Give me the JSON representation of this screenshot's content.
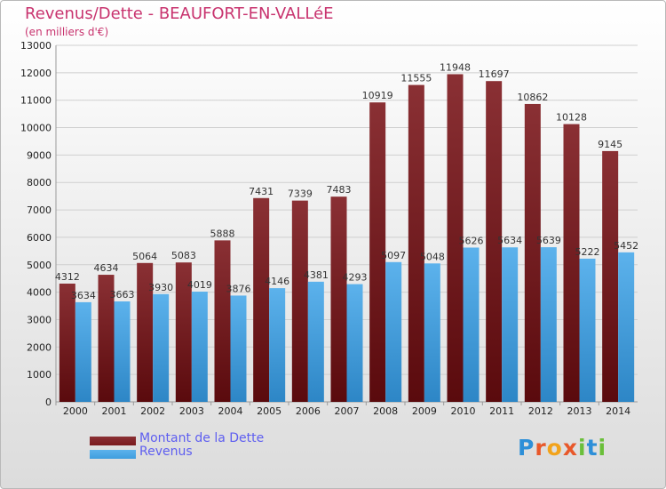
{
  "colors": {
    "title": "#c8336e",
    "legend_text": "#5e5ef0",
    "debt": "#7a1a1d",
    "revenue": "#3f9ede"
  },
  "chart_data": {
    "type": "bar",
    "title": "Revenus/Dette - BEAUFORT-EN-VALLéE",
    "subtitle": "(en milliers d'€)",
    "categories": [
      "2000",
      "2001",
      "2002",
      "2003",
      "2004",
      "2005",
      "2006",
      "2007",
      "2008",
      "2009",
      "2010",
      "2011",
      "2012",
      "2013",
      "2014"
    ],
    "series": [
      {
        "name": "Montant de la Dette",
        "color": "#7a1a1d",
        "values": [
          4312,
          4634,
          5064,
          5083,
          5888,
          7431,
          7339,
          7483,
          10919,
          11555,
          11948,
          11697,
          10862,
          10128,
          9145
        ]
      },
      {
        "name": "Revenus",
        "color": "#3f9ede",
        "values": [
          3634,
          3663,
          3930,
          4019,
          3876,
          4146,
          4381,
          4293,
          5097,
          5048,
          5626,
          5634,
          5639,
          5222,
          5452
        ]
      }
    ],
    "ylim": [
      0,
      13000
    ],
    "yticks": [
      0,
      1000,
      2000,
      3000,
      4000,
      5000,
      6000,
      7000,
      8000,
      9000,
      10000,
      11000,
      12000,
      13000
    ],
    "grid": true,
    "legend_position": "bottom-left"
  },
  "logo": {
    "letters": [
      "P",
      "r",
      "o",
      "x",
      "i",
      "t",
      "i"
    ]
  }
}
